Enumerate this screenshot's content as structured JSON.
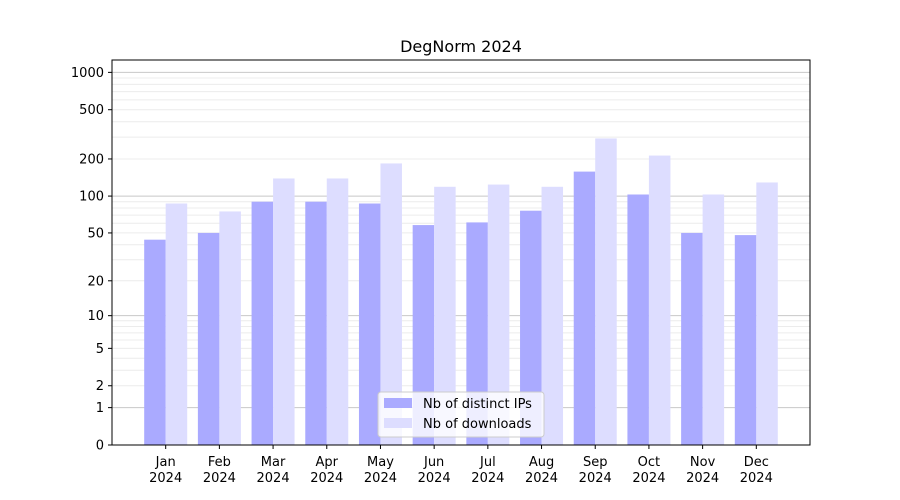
{
  "chart_data": {
    "type": "bar",
    "title": "DegNorm 2024",
    "xlabel": "",
    "ylabel": "",
    "yscale": "log10(1+y)",
    "ylim": [
      0,
      1258
    ],
    "yticks": [
      0,
      1,
      2,
      5,
      10,
      20,
      50,
      100,
      200,
      500,
      1000
    ],
    "grid": true,
    "legend_position": "lower-center",
    "categories": [
      "Jan\n2024",
      "Feb\n2024",
      "Mar\n2024",
      "Apr\n2024",
      "May\n2024",
      "Jun\n2024",
      "Jul\n2024",
      "Aug\n2024",
      "Sep\n2024",
      "Oct\n2024",
      "Nov\n2024",
      "Dec\n2024"
    ],
    "series": [
      {
        "name": "Nb of distinct IPs",
        "color": "#aaaaff",
        "values": [
          44,
          50,
          90,
          90,
          87,
          58,
          61,
          76,
          158,
          103,
          50,
          48
        ]
      },
      {
        "name": "Nb of downloads",
        "color": "#ddddff",
        "values": [
          87,
          75,
          139,
          139,
          184,
          119,
          124,
          119,
          293,
          213,
          103,
          129
        ]
      }
    ]
  }
}
